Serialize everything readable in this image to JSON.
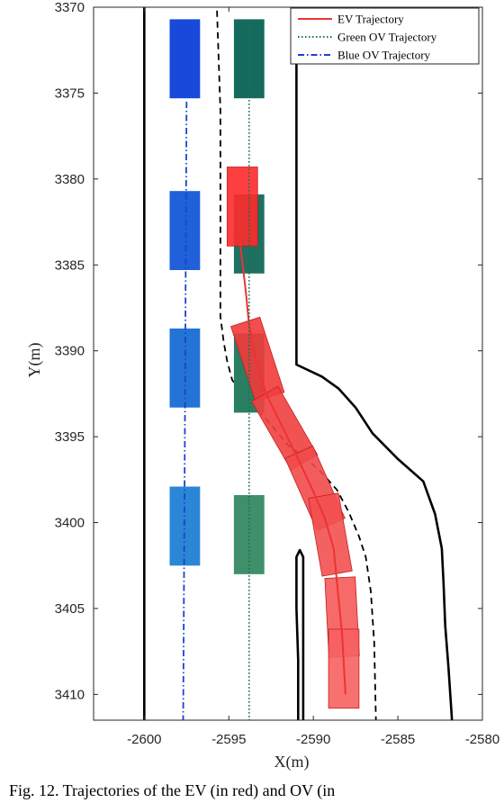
{
  "caption": "Fig. 12.  Trajectories of the EV (in red) and OV (in",
  "chart_data": {
    "type": "line",
    "xlabel": "X(m)",
    "ylabel": "Y(m)",
    "xlim": [
      -2603,
      -2580
    ],
    "ylim": [
      3370,
      3411.5
    ],
    "y_reversed": true,
    "xticks": [
      -2600,
      -2595,
      -2590,
      -2585,
      -2580
    ],
    "yticks": [
      3370,
      3375,
      3380,
      3385,
      3390,
      3395,
      3400,
      3405,
      3410
    ],
    "legend": {
      "position": "top-right",
      "entries": [
        {
          "label": "EV Trajectory",
          "color": "#ee3333",
          "style": "solid"
        },
        {
          "label": "Green OV Trajectory",
          "color": "#1f6f5a",
          "style": "dotted"
        },
        {
          "label": "Blue OV Trajectory",
          "color": "#1a44cc",
          "style": "dashdot"
        }
      ]
    },
    "road_boundaries": [
      {
        "style": "solid",
        "points": [
          [
            -2600,
            3370
          ],
          [
            -2600,
            3411.5
          ]
        ]
      },
      {
        "style": "solid",
        "points": [
          [
            -2591,
            3370
          ],
          [
            -2591,
            3390.8
          ],
          [
            -2589.5,
            3391.5
          ],
          [
            -2588.5,
            3392.2
          ],
          [
            -2587.5,
            3393.3
          ],
          [
            -2586.5,
            3394.8
          ],
          [
            -2585,
            3396.3
          ],
          [
            -2583.5,
            3397.6
          ],
          [
            -2582.8,
            3399.5
          ],
          [
            -2582.4,
            3401.5
          ],
          [
            -2582.3,
            3403.5
          ],
          [
            -2582.2,
            3406
          ],
          [
            -2582,
            3408.5
          ],
          [
            -2581.8,
            3411.5
          ]
        ]
      },
      {
        "style": "solid",
        "points": [
          [
            -2590.9,
            3411.5
          ],
          [
            -2590.9,
            3408
          ],
          [
            -2591,
            3405
          ],
          [
            -2591,
            3402
          ],
          [
            -2590.8,
            3401.6
          ],
          [
            -2590.6,
            3402
          ],
          [
            -2590.6,
            3405
          ],
          [
            -2590.6,
            3408
          ],
          [
            -2590.6,
            3411.5
          ]
        ]
      },
      {
        "style": "dashed",
        "points": [
          [
            -2595.7,
            3370.2
          ],
          [
            -2595.5,
            3376
          ],
          [
            -2595.5,
            3382
          ],
          [
            -2595.5,
            3388
          ],
          [
            -2595.3,
            3389.5
          ],
          [
            -2595.1,
            3390.6
          ],
          [
            -2594.8,
            3391.7
          ],
          [
            -2594.2,
            3392.5
          ],
          [
            -2593.5,
            3393.2
          ],
          [
            -2592.5,
            3394.3
          ],
          [
            -2591.5,
            3395.5
          ],
          [
            -2590.4,
            3396.3
          ],
          [
            -2589.5,
            3397.1
          ],
          [
            -2588.6,
            3398.1
          ],
          [
            -2587.9,
            3399.4
          ],
          [
            -2587.3,
            3400.8
          ],
          [
            -2586.9,
            3402
          ],
          [
            -2586.6,
            3404
          ],
          [
            -2586.4,
            3407
          ],
          [
            -2586.3,
            3411.5
          ]
        ]
      }
    ],
    "series": [
      {
        "name": "EV Trajectory",
        "color": "#ee3333",
        "style": "solid",
        "x": [
          -2594.4,
          -2594.3,
          -2594.0,
          -2593.8,
          -2593.4,
          -2592.8,
          -2591.8,
          -2590.8,
          -2590.0,
          -2589.3,
          -2588.8,
          -2588.6,
          -2588.3,
          -2588.1
        ],
        "y": [
          3381.5,
          3384,
          3386.5,
          3388.5,
          3390.5,
          3392.5,
          3394.5,
          3396.5,
          3398.2,
          3399.8,
          3401.5,
          3403.5,
          3406.5,
          3410
        ]
      },
      {
        "name": "Green OV Trajectory",
        "color": "#1f6f5a",
        "style": "dotted",
        "x": [
          -2593.8,
          -2593.8
        ],
        "y": [
          3371,
          3411.5
        ]
      },
      {
        "name": "Blue OV Trajectory",
        "color": "#1a44cc",
        "style": "dashdot",
        "x": [
          -2597.5,
          -2597.6,
          -2597.7
        ],
        "y": [
          3375.5,
          3395,
          3411.5
        ]
      }
    ],
    "vehicles": [
      {
        "group": "blue",
        "color": "#1849da",
        "cx": -2597.6,
        "cy": 3373,
        "w": 1.8,
        "h": 4.6,
        "angle": 0
      },
      {
        "group": "blue",
        "color": "#2060d8",
        "cx": -2597.6,
        "cy": 3383,
        "w": 1.8,
        "h": 4.6,
        "angle": 0
      },
      {
        "group": "blue",
        "color": "#2473d6",
        "cx": -2597.6,
        "cy": 3391,
        "w": 1.8,
        "h": 4.6,
        "angle": 0
      },
      {
        "group": "blue",
        "color": "#2b86d6",
        "cx": -2597.6,
        "cy": 3400.2,
        "w": 1.8,
        "h": 4.6,
        "angle": 0
      },
      {
        "group": "green",
        "color": "#156a5e",
        "cx": -2593.8,
        "cy": 3373,
        "w": 1.8,
        "h": 4.6,
        "angle": 0
      },
      {
        "group": "green",
        "color": "#1e7060",
        "cx": -2593.8,
        "cy": 3383.2,
        "w": 1.8,
        "h": 4.6,
        "angle": 0
      },
      {
        "group": "green",
        "color": "#2a7f62",
        "cx": -2593.8,
        "cy": 3391.3,
        "w": 1.8,
        "h": 4.6,
        "angle": 0
      },
      {
        "group": "green",
        "color": "#3e8f6a",
        "cx": -2593.8,
        "cy": 3400.7,
        "w": 1.8,
        "h": 4.6,
        "angle": 0
      },
      {
        "group": "ev",
        "color": "#ff2a2a",
        "cx": -2594.2,
        "cy": 3381.6,
        "w": 1.8,
        "h": 4.6,
        "angle": 0
      },
      {
        "group": "ev",
        "color": "#f23a3a",
        "cx": -2593.3,
        "cy": 3390.5,
        "w": 1.8,
        "h": 4.6,
        "angle": -18
      },
      {
        "group": "ev",
        "color": "#f04040",
        "cx": -2591.7,
        "cy": 3394.5,
        "w": 1.8,
        "h": 4.6,
        "angle": -30
      },
      {
        "group": "ev",
        "color": "#f24a4a",
        "cx": -2589.9,
        "cy": 3398,
        "w": 1.8,
        "h": 4.6,
        "angle": -24
      },
      {
        "group": "ev",
        "color": "#f35050",
        "cx": -2589.0,
        "cy": 3400.7,
        "w": 1.8,
        "h": 4.6,
        "angle": -10
      },
      {
        "group": "ev",
        "color": "#f55a5a",
        "cx": -2588.3,
        "cy": 3405.5,
        "w": 1.8,
        "h": 4.6,
        "angle": -3
      },
      {
        "group": "ev",
        "color": "#f76060",
        "cx": -2588.2,
        "cy": 3408.5,
        "w": 1.8,
        "h": 4.6,
        "angle": 0
      }
    ]
  }
}
